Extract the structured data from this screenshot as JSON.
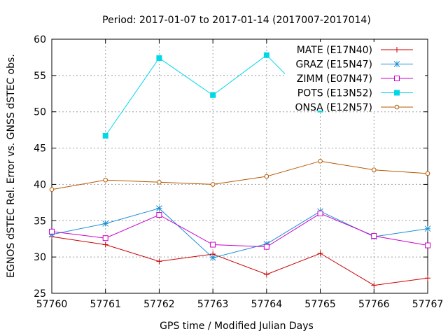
{
  "chart_data": {
    "type": "line",
    "title": "Period: 2017-01-07 to 2017-01-14 (2017007-2017014)",
    "xlabel": "GPS time / Modified Julian Days",
    "ylabel": "EGNOS dSTEC Rel. Error vs. GNSS dSTEC obs.",
    "xlim": [
      57760,
      57767
    ],
    "ylim": [
      25,
      60
    ],
    "xticks": [
      57760,
      57761,
      57762,
      57763,
      57764,
      57765,
      57766,
      57767
    ],
    "yticks": [
      25,
      30,
      35,
      40,
      45,
      50,
      55,
      60
    ],
    "grid": true,
    "legend_position": "top-right",
    "series": [
      {
        "name": "MATE (E17N40)",
        "color": "#cc0000",
        "marker": "plus",
        "x": [
          57760,
          57761,
          57762,
          57763,
          57764,
          57765,
          57766,
          57767
        ],
        "y": [
          32.8,
          31.7,
          29.4,
          30.4,
          27.6,
          30.5,
          26.1,
          27.1
        ]
      },
      {
        "name": "GRAZ (E15N47)",
        "color": "#1a8fd6",
        "marker": "star",
        "x": [
          57760,
          57761,
          57762,
          57763,
          57764,
          57765,
          57766,
          57767
        ],
        "y": [
          33.1,
          34.6,
          36.7,
          29.9,
          31.8,
          36.3,
          32.8,
          33.9
        ]
      },
      {
        "name": "ZIMM (E07N47)",
        "color": "#cc00cc",
        "marker": "square-open",
        "x": [
          57760,
          57761,
          57762,
          57763,
          57764,
          57765,
          57766,
          57767
        ],
        "y": [
          33.5,
          32.6,
          35.8,
          31.7,
          31.4,
          36.0,
          32.9,
          31.6
        ]
      },
      {
        "name": "POTS (E13N52)",
        "color": "#00d8e8",
        "marker": "square-filled",
        "x": [
          57761,
          57762,
          57763,
          57764,
          57765
        ],
        "y": [
          46.7,
          57.4,
          52.3,
          57.8,
          50.3
        ]
      },
      {
        "name": "ONSA (E12N57)",
        "color": "#b35900",
        "marker": "circle-open",
        "x": [
          57760,
          57761,
          57762,
          57763,
          57764,
          57765,
          57766,
          57767
        ],
        "y": [
          39.3,
          40.6,
          40.3,
          40.0,
          41.1,
          43.2,
          42.0,
          41.5
        ]
      }
    ]
  }
}
